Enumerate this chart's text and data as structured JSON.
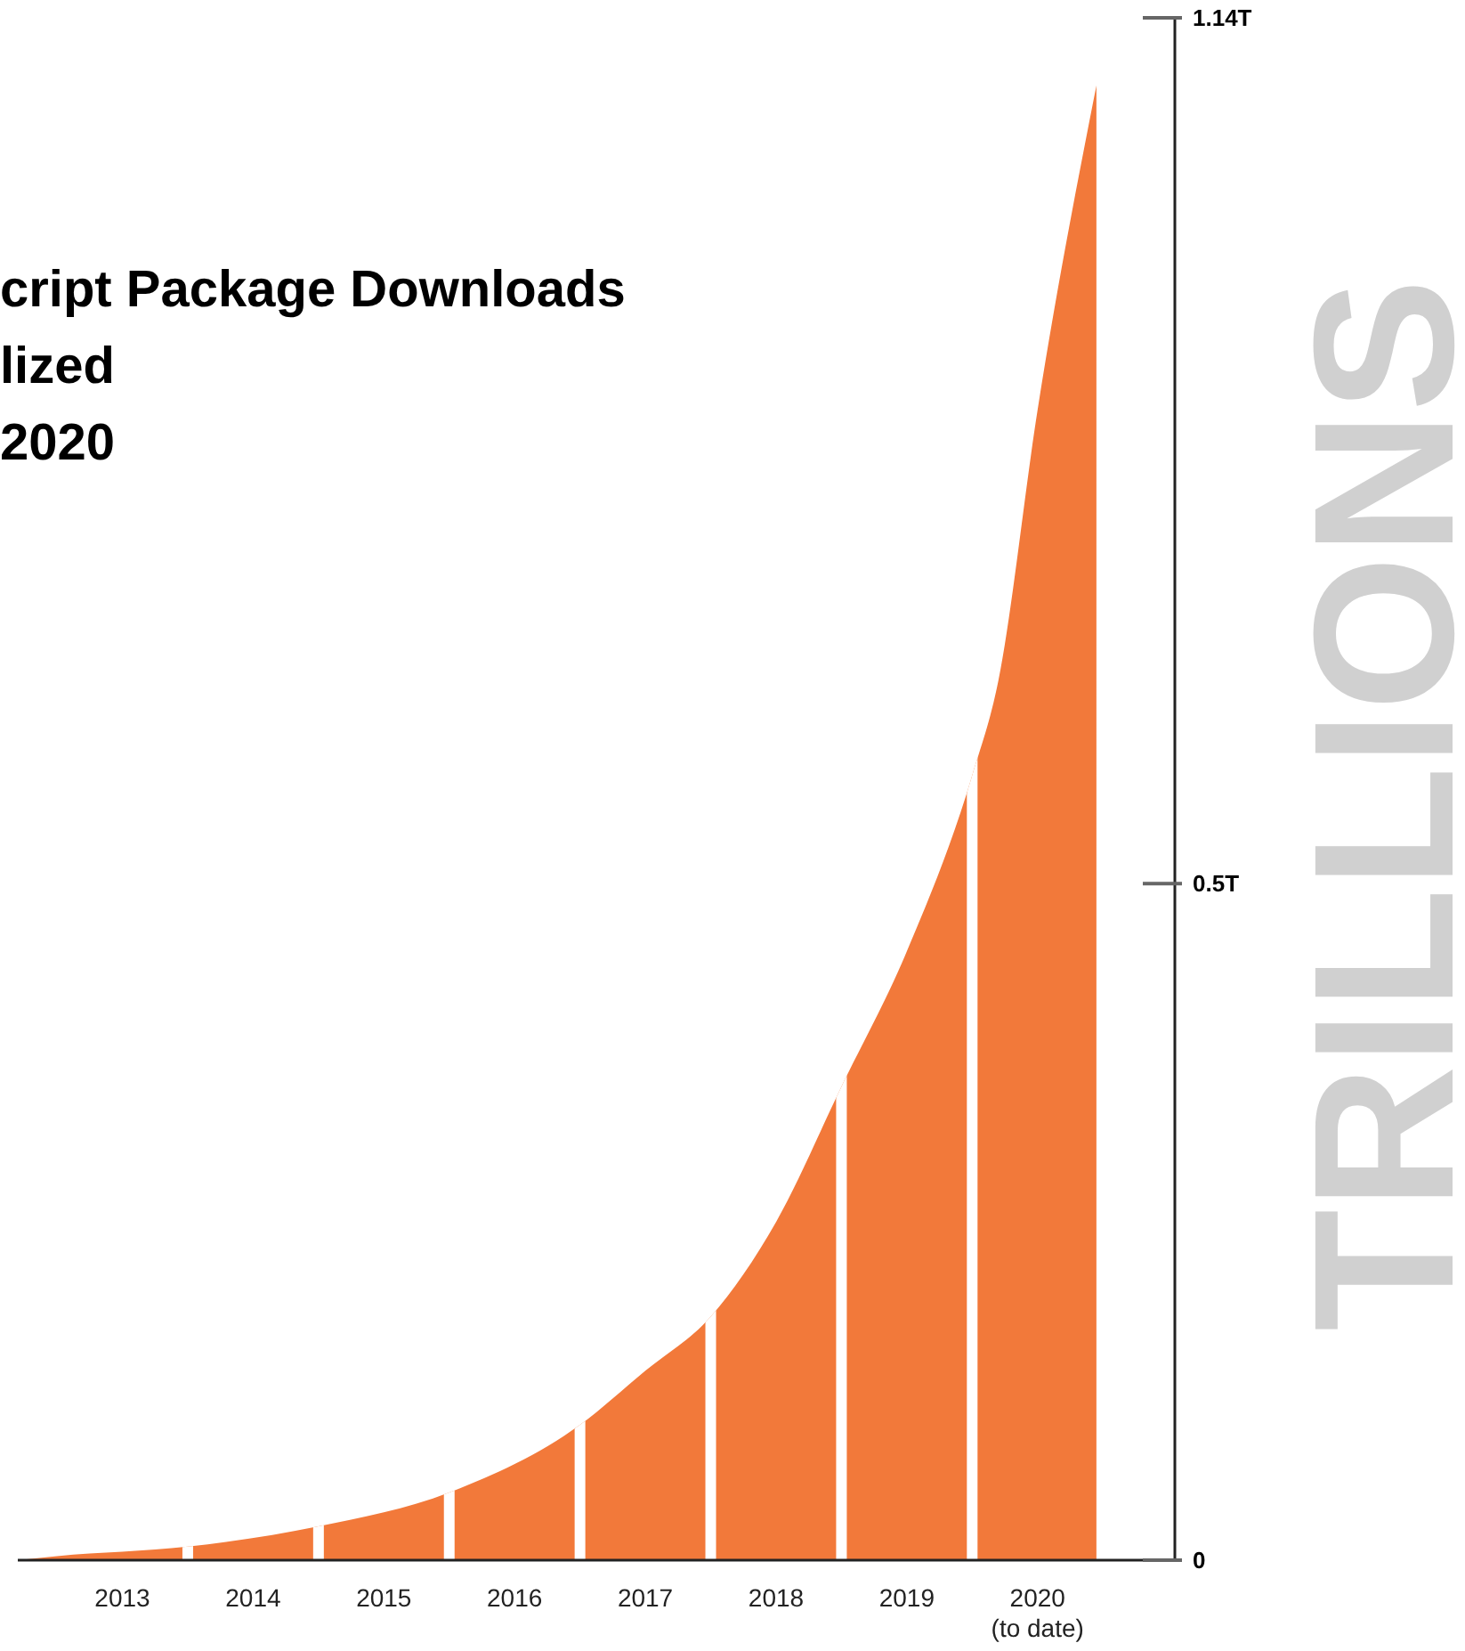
{
  "chart_data": {
    "type": "area",
    "title": "cript Package Downloads\nlized\n2020",
    "ylabel": "TRILLIONS",
    "x": [
      2012.7,
      2013,
      2014,
      2015,
      2016,
      2017,
      2017.5,
      2018,
      2018.5,
      2019,
      2019.5,
      2020,
      2020.2,
      2020.5,
      2020.95
    ],
    "series": [
      {
        "color": "#f2793a",
        "values": [
          0,
          0.003,
          0.01,
          0.025,
          0.05,
          0.1,
          0.14,
          0.18,
          0.25,
          0.35,
          0.45,
          0.58,
          0.65,
          0.85,
          1.09
        ]
      }
    ],
    "xlim": [
      2012.7,
      2021.55
    ],
    "xticks": [
      {
        "value": 2013.5,
        "label": "2013"
      },
      {
        "value": 2014.5,
        "label": "2014"
      },
      {
        "value": 2015.5,
        "label": "2015"
      },
      {
        "value": 2016.5,
        "label": "2016"
      },
      {
        "value": 2017.5,
        "label": "2017"
      },
      {
        "value": 2018.5,
        "label": "2018"
      },
      {
        "value": 2019.5,
        "label": "2019"
      },
      {
        "value": 2020.5,
        "label": "2020\n(to date)"
      }
    ],
    "ylim": [
      0,
      1.14
    ],
    "yticks": [
      0,
      {
        "value": 0.5,
        "label": "0.5T"
      },
      {
        "value": 1.14,
        "label": "1.14T"
      }
    ],
    "ref_lines": [
      {
        "axis": "x",
        "value": 2014,
        "color": "#ffffff"
      },
      {
        "axis": "x",
        "value": 2015,
        "color": "#ffffff"
      },
      {
        "axis": "x",
        "value": 2016,
        "color": "#ffffff"
      },
      {
        "axis": "x",
        "value": 2017,
        "color": "#ffffff"
      },
      {
        "axis": "x",
        "value": 2018,
        "color": "#ffffff"
      },
      {
        "axis": "x",
        "value": 2019,
        "color": "#ffffff"
      },
      {
        "axis": "x",
        "value": 2020,
        "color": "#ffffff"
      }
    ],
    "grid": false
  }
}
